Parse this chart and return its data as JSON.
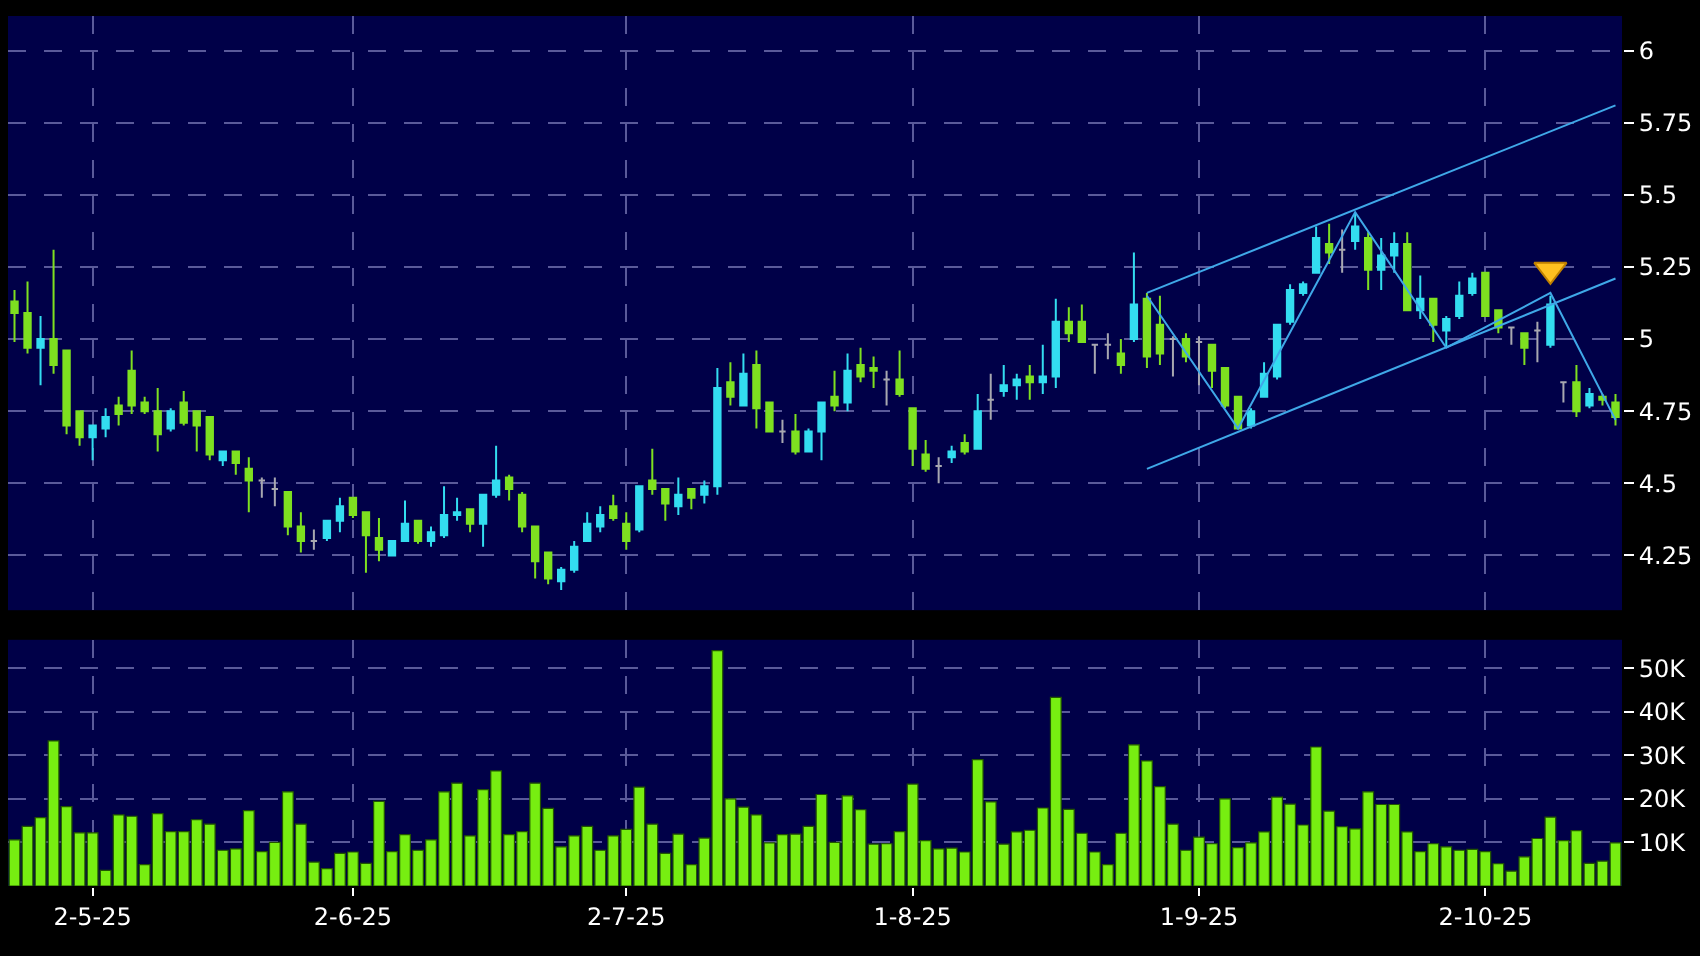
{
  "chart_data": [
    {
      "type": "candlestick",
      "ylim": [
        4.06,
        6.12
      ],
      "grid": true,
      "tick_labels": "y",
      "categories": [
        null,
        null,
        null,
        null,
        null,
        null,
        null,
        null,
        null,
        null,
        null,
        null,
        null,
        null,
        null,
        null,
        null,
        null,
        null,
        null,
        null,
        null,
        null,
        null,
        null,
        null,
        null,
        null,
        null,
        null,
        null,
        null,
        null,
        null,
        null,
        null,
        null,
        null,
        null,
        null,
        null,
        null,
        null,
        null,
        null,
        null,
        null,
        null,
        null,
        null,
        null,
        null,
        null,
        null,
        null,
        null,
        null,
        null,
        null,
        null,
        null,
        null,
        null,
        null,
        null,
        null,
        null,
        null,
        null,
        null,
        null,
        null,
        null,
        null,
        null,
        null,
        null,
        null,
        null,
        null,
        null,
        null,
        null,
        null,
        null,
        null,
        null,
        null,
        null,
        null,
        null,
        null,
        null,
        null,
        null,
        null,
        null,
        null,
        null,
        null,
        null,
        null,
        null,
        null,
        null,
        null,
        null,
        null,
        null,
        null,
        null,
        null,
        null,
        null,
        null,
        null,
        null,
        null,
        null,
        null,
        null,
        null,
        null,
        null
      ],
      "yticks": [
        4.25,
        4.5,
        4.75,
        5,
        5.25,
        5.5,
        5.75,
        6
      ],
      "ohlc": [
        [
          5.13,
          5.17,
          4.99,
          5.09
        ],
        [
          5.09,
          5.2,
          4.95,
          4.97
        ],
        [
          4.97,
          5.08,
          4.84,
          5.0
        ],
        [
          5.0,
          5.31,
          4.88,
          4.91
        ],
        [
          4.96,
          4.96,
          4.67,
          4.7
        ],
        [
          4.75,
          4.75,
          4.63,
          4.66
        ],
        [
          4.66,
          4.7,
          4.58,
          4.7
        ],
        [
          4.69,
          4.76,
          4.66,
          4.73
        ],
        [
          4.77,
          4.8,
          4.7,
          4.74
        ],
        [
          4.89,
          4.96,
          4.74,
          4.77
        ],
        [
          4.78,
          4.8,
          4.74,
          4.75
        ],
        [
          4.75,
          4.83,
          4.61,
          4.67
        ],
        [
          4.69,
          4.76,
          4.68,
          4.75
        ],
        [
          4.78,
          4.82,
          4.7,
          4.71
        ],
        [
          4.75,
          4.75,
          4.61,
          4.7
        ],
        [
          4.73,
          4.73,
          4.58,
          4.6
        ],
        [
          4.58,
          4.61,
          4.56,
          4.61
        ],
        [
          4.61,
          4.61,
          4.53,
          4.57
        ],
        [
          4.55,
          4.59,
          4.4,
          4.51
        ],
        [
          4.51,
          4.52,
          4.45,
          4.51
        ],
        [
          4.48,
          4.52,
          4.42,
          4.48
        ],
        [
          4.47,
          4.47,
          4.32,
          4.35
        ],
        [
          4.35,
          4.4,
          4.26,
          4.3
        ],
        [
          4.3,
          4.34,
          4.27,
          4.3
        ],
        [
          4.31,
          4.37,
          4.3,
          4.37
        ],
        [
          4.37,
          4.45,
          4.33,
          4.42
        ],
        [
          4.45,
          4.45,
          4.38,
          4.39
        ],
        [
          4.4,
          4.4,
          4.19,
          4.32
        ],
        [
          4.31,
          4.38,
          4.23,
          4.27
        ],
        [
          4.25,
          4.3,
          4.25,
          4.3
        ],
        [
          4.3,
          4.44,
          4.3,
          4.36
        ],
        [
          4.37,
          4.37,
          4.29,
          4.3
        ],
        [
          4.3,
          4.35,
          4.28,
          4.33
        ],
        [
          4.32,
          4.49,
          4.31,
          4.39
        ],
        [
          4.39,
          4.45,
          4.37,
          4.4
        ],
        [
          4.41,
          4.41,
          4.33,
          4.36
        ],
        [
          4.36,
          4.46,
          4.28,
          4.46
        ],
        [
          4.46,
          4.63,
          4.45,
          4.51
        ],
        [
          4.52,
          4.53,
          4.44,
          4.48
        ],
        [
          4.46,
          4.47,
          4.33,
          4.35
        ],
        [
          4.35,
          4.35,
          4.17,
          4.23
        ],
        [
          4.26,
          4.26,
          4.15,
          4.17
        ],
        [
          4.16,
          4.21,
          4.13,
          4.2
        ],
        [
          4.2,
          4.3,
          4.19,
          4.28
        ],
        [
          4.3,
          4.4,
          4.3,
          4.36
        ],
        [
          4.35,
          4.42,
          4.33,
          4.39
        ],
        [
          4.42,
          4.46,
          4.37,
          4.38
        ],
        [
          4.36,
          4.4,
          4.27,
          4.3
        ],
        [
          4.34,
          4.49,
          4.33,
          4.49
        ],
        [
          4.51,
          4.62,
          4.46,
          4.48
        ],
        [
          4.48,
          4.48,
          4.37,
          4.43
        ],
        [
          4.42,
          4.52,
          4.39,
          4.46
        ],
        [
          4.48,
          4.48,
          4.41,
          4.45
        ],
        [
          4.46,
          4.51,
          4.43,
          4.49
        ],
        [
          4.49,
          4.9,
          4.46,
          4.83
        ],
        [
          4.85,
          4.92,
          4.77,
          4.8
        ],
        [
          4.77,
          4.95,
          4.77,
          4.88
        ],
        [
          4.91,
          4.96,
          4.69,
          4.76
        ],
        [
          4.78,
          4.78,
          4.68,
          4.68
        ],
        [
          4.68,
          4.72,
          4.64,
          4.68
        ],
        [
          4.68,
          4.74,
          4.6,
          4.61
        ],
        [
          4.61,
          4.69,
          4.61,
          4.68
        ],
        [
          4.68,
          4.78,
          4.58,
          4.78
        ],
        [
          4.8,
          4.89,
          4.75,
          4.77
        ],
        [
          4.78,
          4.95,
          4.75,
          4.89
        ],
        [
          4.91,
          4.97,
          4.85,
          4.87
        ],
        [
          4.9,
          4.94,
          4.83,
          4.89
        ],
        [
          4.86,
          4.89,
          4.77,
          4.86
        ],
        [
          4.86,
          4.96,
          4.8,
          4.81
        ],
        [
          4.76,
          4.76,
          4.56,
          4.62
        ],
        [
          4.6,
          4.65,
          4.54,
          4.55
        ],
        [
          4.56,
          4.59,
          4.5,
          4.56
        ],
        [
          4.59,
          4.63,
          4.57,
          4.61
        ],
        [
          4.64,
          4.67,
          4.6,
          4.61
        ],
        [
          4.62,
          4.81,
          4.62,
          4.75
        ],
        [
          4.79,
          4.88,
          4.72,
          4.79
        ],
        [
          4.82,
          4.91,
          4.8,
          4.84
        ],
        [
          4.84,
          4.88,
          4.79,
          4.86
        ],
        [
          4.87,
          4.91,
          4.79,
          4.85
        ],
        [
          4.85,
          4.98,
          4.81,
          4.87
        ],
        [
          4.87,
          5.14,
          4.83,
          5.06
        ],
        [
          5.06,
          5.11,
          4.99,
          5.02
        ],
        [
          5.06,
          5.12,
          4.99,
          4.99
        ],
        [
          4.98,
          4.98,
          4.88,
          4.98
        ],
        [
          4.98,
          5.02,
          4.93,
          4.98
        ],
        [
          4.95,
          5.0,
          4.88,
          4.91
        ],
        [
          5.0,
          5.3,
          4.99,
          5.12
        ],
        [
          5.14,
          5.16,
          4.9,
          4.94
        ],
        [
          5.05,
          5.15,
          4.91,
          4.95
        ],
        [
          5.0,
          5.01,
          4.87,
          5.0
        ],
        [
          5.0,
          5.02,
          4.92,
          4.94
        ],
        [
          4.99,
          5.01,
          4.84,
          4.99
        ],
        [
          4.98,
          4.98,
          4.83,
          4.89
        ],
        [
          4.9,
          4.9,
          4.76,
          4.77
        ],
        [
          4.8,
          4.8,
          4.69,
          4.69
        ],
        [
          4.7,
          4.76,
          4.69,
          4.75
        ],
        [
          4.8,
          4.92,
          4.8,
          4.88
        ],
        [
          4.87,
          5.05,
          4.86,
          5.05
        ],
        [
          5.06,
          5.19,
          5.05,
          5.17
        ],
        [
          5.16,
          5.2,
          5.15,
          5.19
        ],
        [
          5.23,
          5.39,
          5.23,
          5.35
        ],
        [
          5.33,
          5.4,
          5.26,
          5.3
        ],
        [
          5.31,
          5.38,
          5.23,
          5.31
        ],
        [
          5.34,
          5.44,
          5.31,
          5.39
        ],
        [
          5.35,
          5.37,
          5.17,
          5.24
        ],
        [
          5.24,
          5.35,
          5.17,
          5.29
        ],
        [
          5.29,
          5.37,
          5.23,
          5.33
        ],
        [
          5.33,
          5.37,
          5.1,
          5.1
        ],
        [
          5.1,
          5.22,
          5.07,
          5.14
        ],
        [
          5.14,
          5.14,
          4.99,
          5.05
        ],
        [
          5.03,
          5.08,
          4.97,
          5.07
        ],
        [
          5.08,
          5.2,
          5.07,
          5.15
        ],
        [
          5.16,
          5.23,
          5.15,
          5.21
        ],
        [
          5.23,
          5.23,
          5.08,
          5.08
        ],
        [
          5.1,
          5.1,
          5.02,
          5.04
        ],
        [
          5.04,
          5.04,
          4.98,
          5.04
        ],
        [
          5.02,
          5.02,
          4.91,
          4.97
        ],
        [
          5.03,
          5.06,
          4.92,
          5.03
        ],
        [
          4.98,
          5.15,
          4.97,
          5.12
        ],
        [
          4.85,
          4.85,
          4.78,
          4.85
        ],
        [
          4.85,
          4.91,
          4.73,
          4.75
        ],
        [
          4.77,
          4.83,
          4.76,
          4.81
        ],
        [
          4.8,
          4.81,
          4.77,
          4.79
        ],
        [
          4.78,
          4.81,
          4.7,
          4.73
        ]
      ],
      "colors": [
        "#7ee020",
        "#7ee020",
        "#33ddf0",
        "#7ee020",
        "#7ee020",
        "#7ee020",
        "#33ddf0",
        "#33ddf0",
        "#7ee020",
        "#7ee020",
        "#7ee020",
        "#7ee020",
        "#33ddf0",
        "#7ee020",
        "#7ee020",
        "#7ee020",
        "#33ddf0",
        "#7ee020",
        "#7ee020",
        "#a8a8b0",
        "#a8a8b0",
        "#7ee020",
        "#7ee020",
        "#a8a8b0",
        "#33ddf0",
        "#33ddf0",
        "#7ee020",
        "#7ee020",
        "#7ee020",
        "#33ddf0",
        "#33ddf0",
        "#7ee020",
        "#33ddf0",
        "#33ddf0",
        "#33ddf0",
        "#7ee020",
        "#33ddf0",
        "#33ddf0",
        "#7ee020",
        "#7ee020",
        "#7ee020",
        "#7ee020",
        "#33ddf0",
        "#33ddf0",
        "#33ddf0",
        "#33ddf0",
        "#7ee020",
        "#7ee020",
        "#33ddf0",
        "#7ee020",
        "#7ee020",
        "#33ddf0",
        "#7ee020",
        "#33ddf0",
        "#33ddf0",
        "#7ee020",
        "#33ddf0",
        "#7ee020",
        "#7ee020",
        "#a8a8b0",
        "#7ee020",
        "#33ddf0",
        "#33ddf0",
        "#7ee020",
        "#33ddf0",
        "#7ee020",
        "#7ee020",
        "#a8a8b0",
        "#7ee020",
        "#7ee020",
        "#7ee020",
        "#a8a8b0",
        "#33ddf0",
        "#7ee020",
        "#33ddf0",
        "#a8a8b0",
        "#33ddf0",
        "#33ddf0",
        "#7ee020",
        "#33ddf0",
        "#33ddf0",
        "#7ee020",
        "#7ee020",
        "#a8a8b0",
        "#a8a8b0",
        "#7ee020",
        "#33ddf0",
        "#7ee020",
        "#7ee020",
        "#a8a8b0",
        "#7ee020",
        "#a8a8b0",
        "#7ee020",
        "#7ee020",
        "#7ee020",
        "#33ddf0",
        "#33ddf0",
        "#33ddf0",
        "#33ddf0",
        "#33ddf0",
        "#33ddf0",
        "#7ee020",
        "#a8a8b0",
        "#33ddf0",
        "#7ee020",
        "#33ddf0",
        "#33ddf0",
        "#7ee020",
        "#33ddf0",
        "#7ee020",
        "#33ddf0",
        "#33ddf0",
        "#33ddf0",
        "#7ee020",
        "#7ee020",
        "#a8a8b0",
        "#7ee020",
        "#a8a8b0",
        "#33ddf0",
        "#a8a8b0",
        "#7ee020",
        "#33ddf0",
        "#7ee020",
        "#7ee020"
      ],
      "series": [
        {
          "type": "line",
          "color": "#3fa8e8",
          "values": [
            null,
            null,
            null,
            null,
            null,
            null,
            null,
            null,
            null,
            null,
            null,
            null,
            null,
            null,
            null,
            null,
            null,
            null,
            null,
            null,
            null,
            null,
            null,
            null,
            null,
            null,
            null,
            null,
            null,
            null,
            null,
            null,
            null,
            null,
            null,
            null,
            null,
            null,
            null,
            null,
            null,
            null,
            null,
            null,
            null,
            null,
            null,
            null,
            null,
            null,
            null,
            null,
            null,
            null,
            null,
            null,
            null,
            null,
            null,
            null,
            null,
            null,
            null,
            null,
            null,
            null,
            null,
            null,
            null,
            null,
            null,
            null,
            null,
            null,
            null,
            null,
            null,
            null,
            null,
            null,
            null,
            null,
            null,
            null,
            null,
            null,
            null,
            5.16,
            null,
            null,
            null,
            null,
            null,
            null,
            null,
            null,
            null,
            null,
            null,
            null,
            null,
            null,
            null,
            null,
            null,
            null,
            null,
            null,
            null,
            null,
            null,
            null,
            null,
            null,
            null,
            null,
            null,
            null,
            null,
            null,
            null,
            null,
            null,
            5.81
          ]
        },
        {
          "type": "line",
          "color": "#3fa8e8",
          "values": [
            null,
            null,
            null,
            null,
            null,
            null,
            null,
            null,
            null,
            null,
            null,
            null,
            null,
            null,
            null,
            null,
            null,
            null,
            null,
            null,
            null,
            null,
            null,
            null,
            null,
            null,
            null,
            null,
            null,
            null,
            null,
            null,
            null,
            null,
            null,
            null,
            null,
            null,
            null,
            null,
            null,
            null,
            null,
            null,
            null,
            null,
            null,
            null,
            null,
            null,
            null,
            null,
            null,
            null,
            null,
            null,
            null,
            null,
            null,
            null,
            null,
            null,
            null,
            null,
            null,
            null,
            null,
            null,
            null,
            null,
            null,
            null,
            null,
            null,
            null,
            null,
            null,
            null,
            null,
            null,
            null,
            null,
            null,
            null,
            null,
            null,
            null,
            4.55,
            null,
            null,
            null,
            null,
            null,
            null,
            null,
            null,
            null,
            null,
            null,
            null,
            null,
            null,
            null,
            null,
            null,
            null,
            null,
            null,
            null,
            null,
            null,
            null,
            null,
            null,
            null,
            null,
            null,
            null,
            null,
            null,
            null,
            null,
            null,
            5.21
          ]
        },
        {
          "type": "line",
          "color": "#3fa8e8",
          "values": [
            null,
            null,
            null,
            null,
            null,
            null,
            null,
            null,
            null,
            null,
            null,
            null,
            null,
            null,
            null,
            null,
            null,
            null,
            null,
            null,
            null,
            null,
            null,
            null,
            null,
            null,
            null,
            null,
            null,
            null,
            null,
            null,
            null,
            null,
            null,
            null,
            null,
            null,
            null,
            null,
            null,
            null,
            null,
            null,
            null,
            null,
            null,
            null,
            null,
            null,
            null,
            null,
            null,
            null,
            null,
            null,
            null,
            null,
            null,
            null,
            null,
            null,
            null,
            null,
            null,
            null,
            null,
            null,
            null,
            null,
            null,
            null,
            null,
            null,
            null,
            null,
            null,
            null,
            null,
            null,
            null,
            null,
            null,
            null,
            null,
            null,
            null,
            5.15,
            null,
            null,
            null,
            null,
            null,
            null,
            4.69,
            null,
            null,
            null,
            null,
            null,
            null,
            null,
            null,
            5.44,
            null,
            null,
            null,
            null,
            null,
            null,
            4.97,
            null,
            null,
            null,
            null,
            null,
            null,
            null,
            5.16,
            null,
            null,
            null,
            null,
            4.72
          ]
        },
        {
          "type": "scatter",
          "marker": "triangle",
          "color": "#ffc020",
          "values": [
            null,
            null,
            null,
            null,
            null,
            null,
            null,
            null,
            null,
            null,
            null,
            null,
            null,
            null,
            null,
            null,
            null,
            null,
            null,
            null,
            null,
            null,
            null,
            null,
            null,
            null,
            null,
            null,
            null,
            null,
            null,
            null,
            null,
            null,
            null,
            null,
            null,
            null,
            null,
            null,
            null,
            null,
            null,
            null,
            null,
            null,
            null,
            null,
            null,
            null,
            null,
            null,
            null,
            null,
            null,
            null,
            null,
            null,
            null,
            null,
            null,
            null,
            null,
            null,
            null,
            null,
            null,
            null,
            null,
            null,
            null,
            null,
            null,
            null,
            null,
            null,
            null,
            null,
            null,
            null,
            null,
            null,
            null,
            null,
            null,
            null,
            null,
            null,
            null,
            null,
            null,
            null,
            null,
            null,
            null,
            null,
            null,
            null,
            null,
            null,
            null,
            null,
            null,
            null,
            null,
            null,
            null,
            null,
            null,
            null,
            null,
            null,
            null,
            null,
            null,
            null,
            null,
            null,
            5.24,
            null,
            null,
            null,
            null,
            null
          ]
        }
      ]
    },
    {
      "type": "bar",
      "color": "#77ee11",
      "ylim": [
        0,
        56500
      ],
      "grid": true,
      "categories": [
        null,
        null,
        null,
        null,
        null,
        null,
        "2-5-25",
        null,
        null,
        null,
        null,
        null,
        null,
        null,
        null,
        null,
        null,
        null,
        null,
        null,
        null,
        null,
        null,
        null,
        null,
        null,
        "2-6-25",
        null,
        null,
        null,
        null,
        null,
        null,
        null,
        null,
        null,
        null,
        null,
        null,
        null,
        null,
        null,
        null,
        null,
        null,
        null,
        null,
        "2-7-25",
        null,
        null,
        null,
        null,
        null,
        null,
        null,
        null,
        null,
        null,
        null,
        null,
        null,
        null,
        null,
        null,
        null,
        null,
        null,
        null,
        null,
        "1-8-25",
        null,
        null,
        null,
        null,
        null,
        null,
        null,
        null,
        null,
        null,
        null,
        null,
        null,
        null,
        null,
        null,
        null,
        null,
        null,
        null,
        null,
        "1-9-25",
        null,
        null,
        null,
        null,
        null,
        null,
        null,
        null,
        null,
        null,
        null,
        null,
        null,
        null,
        null,
        null,
        null,
        null,
        null,
        null,
        null,
        "2-10-25",
        null,
        null,
        null,
        null,
        null,
        null,
        null,
        null,
        null,
        null
      ],
      "yticks": [
        {
          "value": 10000,
          "label": "10K"
        },
        {
          "value": 20000,
          "label": "20K"
        },
        {
          "value": 30000,
          "label": "30K"
        },
        {
          "value": 40000,
          "label": "40K"
        },
        {
          "value": 50000,
          "label": "50K"
        }
      ],
      "values": [
        10600,
        13700,
        15700,
        33300,
        18200,
        12200,
        12200,
        3600,
        16300,
        16000,
        4900,
        16600,
        12500,
        12500,
        15200,
        14200,
        8200,
        8500,
        17300,
        7900,
        10000,
        21600,
        14200,
        5500,
        4000,
        7500,
        7800,
        5200,
        19400,
        7900,
        11800,
        8200,
        10600,
        21600,
        23600,
        11500,
        22100,
        26400,
        11800,
        12500,
        23600,
        17800,
        9000,
        11500,
        13700,
        8200,
        11500,
        13000,
        22700,
        14200,
        7500,
        11900,
        4900,
        11000,
        54000,
        20000,
        18100,
        16300,
        9900,
        11800,
        11900,
        13700,
        21000,
        10000,
        20700,
        17500,
        9600,
        9700,
        12500,
        23400,
        10400,
        8500,
        8700,
        7800,
        29000,
        19300,
        9600,
        12400,
        12800,
        17900,
        43300,
        17600,
        12100,
        7800,
        4900,
        12100,
        32400,
        28700,
        22800,
        14200,
        8200,
        11200,
        9700,
        20000,
        8800,
        9900,
        12400,
        20400,
        18800,
        14000,
        31900,
        17200,
        13600,
        13100,
        21600,
        18700,
        18700,
        12400,
        7900,
        9700,
        9000,
        8200,
        8400,
        7900,
        5100,
        3400,
        6700,
        10900,
        15800,
        10400,
        12700,
        5200,
        5700,
        9900
      ]
    }
  ]
}
